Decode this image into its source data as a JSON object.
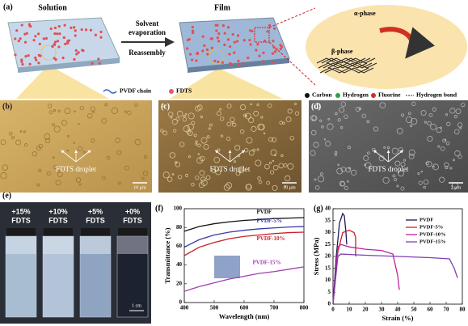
{
  "panel_a": {
    "label": "(a)",
    "solution": "Solution",
    "film": "Film",
    "arrow_top_1": "Solvent",
    "arrow_top_2": "evaporation",
    "arrow_bottom": "Reassembly",
    "alpha": "α-phase",
    "beta": "β-phase",
    "legend": [
      "PVDF chain",
      "FDTS",
      "Carbon",
      "Hydrogen",
      "Fluorine",
      "Hydrogen bond"
    ]
  },
  "panel_b": {
    "label": "(b)",
    "annotation": "FDTS droplet",
    "scale": "10 μm"
  },
  "panel_c": {
    "label": "(c)",
    "annotation": "FDTS droplet",
    "scale": "10 μm"
  },
  "panel_d": {
    "label": "(d)",
    "annotation": "FDTS droplet",
    "scale": "2 μm"
  },
  "panel_e": {
    "label": "(e)",
    "vials": [
      [
        "+15%",
        "FDTS"
      ],
      [
        "+10%",
        "FDTS"
      ],
      [
        "+5%",
        "FDTS"
      ],
      [
        "+0%",
        "FDTS"
      ]
    ],
    "scale": "1 cm"
  },
  "chart_data": [
    {
      "type": "line",
      "label": "(f)",
      "x_label": "Wavelength (nm)",
      "y_label": "Transmittance (%)",
      "x": [
        400,
        450,
        500,
        550,
        600,
        650,
        700,
        750,
        800
      ],
      "xlim": [
        400,
        800
      ],
      "xticks": [
        400,
        500,
        600,
        700,
        800
      ],
      "ylim": [
        0,
        100
      ],
      "yticks": [
        0,
        20,
        40,
        60,
        80,
        100
      ],
      "series": [
        {
          "name": "PVDF",
          "color": "#111111",
          "values": [
            76,
            81,
            84,
            86,
            87.5,
            88.5,
            89.5,
            90,
            90.5
          ]
        },
        {
          "name": "PVDF-5%",
          "color": "#3a3aa8",
          "values": [
            59,
            67,
            72,
            75,
            77,
            78.5,
            79.5,
            80.5,
            81
          ]
        },
        {
          "name": "PVDF-10%",
          "color": "#c8202a",
          "values": [
            50,
            59,
            64,
            68,
            70.5,
            72,
            73.5,
            74.5,
            75
          ]
        },
        {
          "name": "PVDF-15%",
          "color": "#a040b0",
          "values": [
            12,
            17,
            21,
            25,
            28,
            31,
            33,
            35.5,
            38
          ]
        }
      ]
    },
    {
      "type": "line",
      "label": "(g)",
      "x_label": "Strain (%)",
      "y_label": "Stress (MPa)",
      "xlim": [
        0,
        80
      ],
      "xticks": [
        0,
        10,
        20,
        30,
        40,
        50,
        60,
        70,
        80
      ],
      "ylim": [
        0,
        40
      ],
      "yticks": [
        0,
        5,
        10,
        15,
        20,
        25,
        30,
        35,
        40
      ],
      "legend": "upper right",
      "series": [
        {
          "name": "PVDF",
          "color": "#1a1a5a",
          "x": [
            0,
            2,
            4,
            6,
            7,
            8,
            8.5
          ],
          "values": [
            0,
            20,
            34,
            38,
            37,
            30,
            25
          ]
        },
        {
          "name": "PVDF-5%",
          "color": "#c8202a",
          "x": [
            0,
            3,
            6,
            10,
            13,
            14,
            14
          ],
          "values": [
            0,
            22,
            30,
            31,
            30,
            28,
            20
          ]
        },
        {
          "name": "PVDF-10%",
          "color": "#c020a0",
          "x": [
            0,
            3,
            5,
            10,
            20,
            30,
            37,
            40,
            41
          ],
          "values": [
            0,
            24,
            25,
            24,
            23,
            22.5,
            21,
            12,
            6
          ]
        },
        {
          "name": "PVDF-15%",
          "color": "#8040b0",
          "x": [
            0,
            3,
            5,
            20,
            40,
            60,
            72,
            75,
            77
          ],
          "values": [
            0,
            20,
            21,
            20.5,
            20,
            19.5,
            19,
            15,
            11
          ]
        }
      ]
    }
  ]
}
